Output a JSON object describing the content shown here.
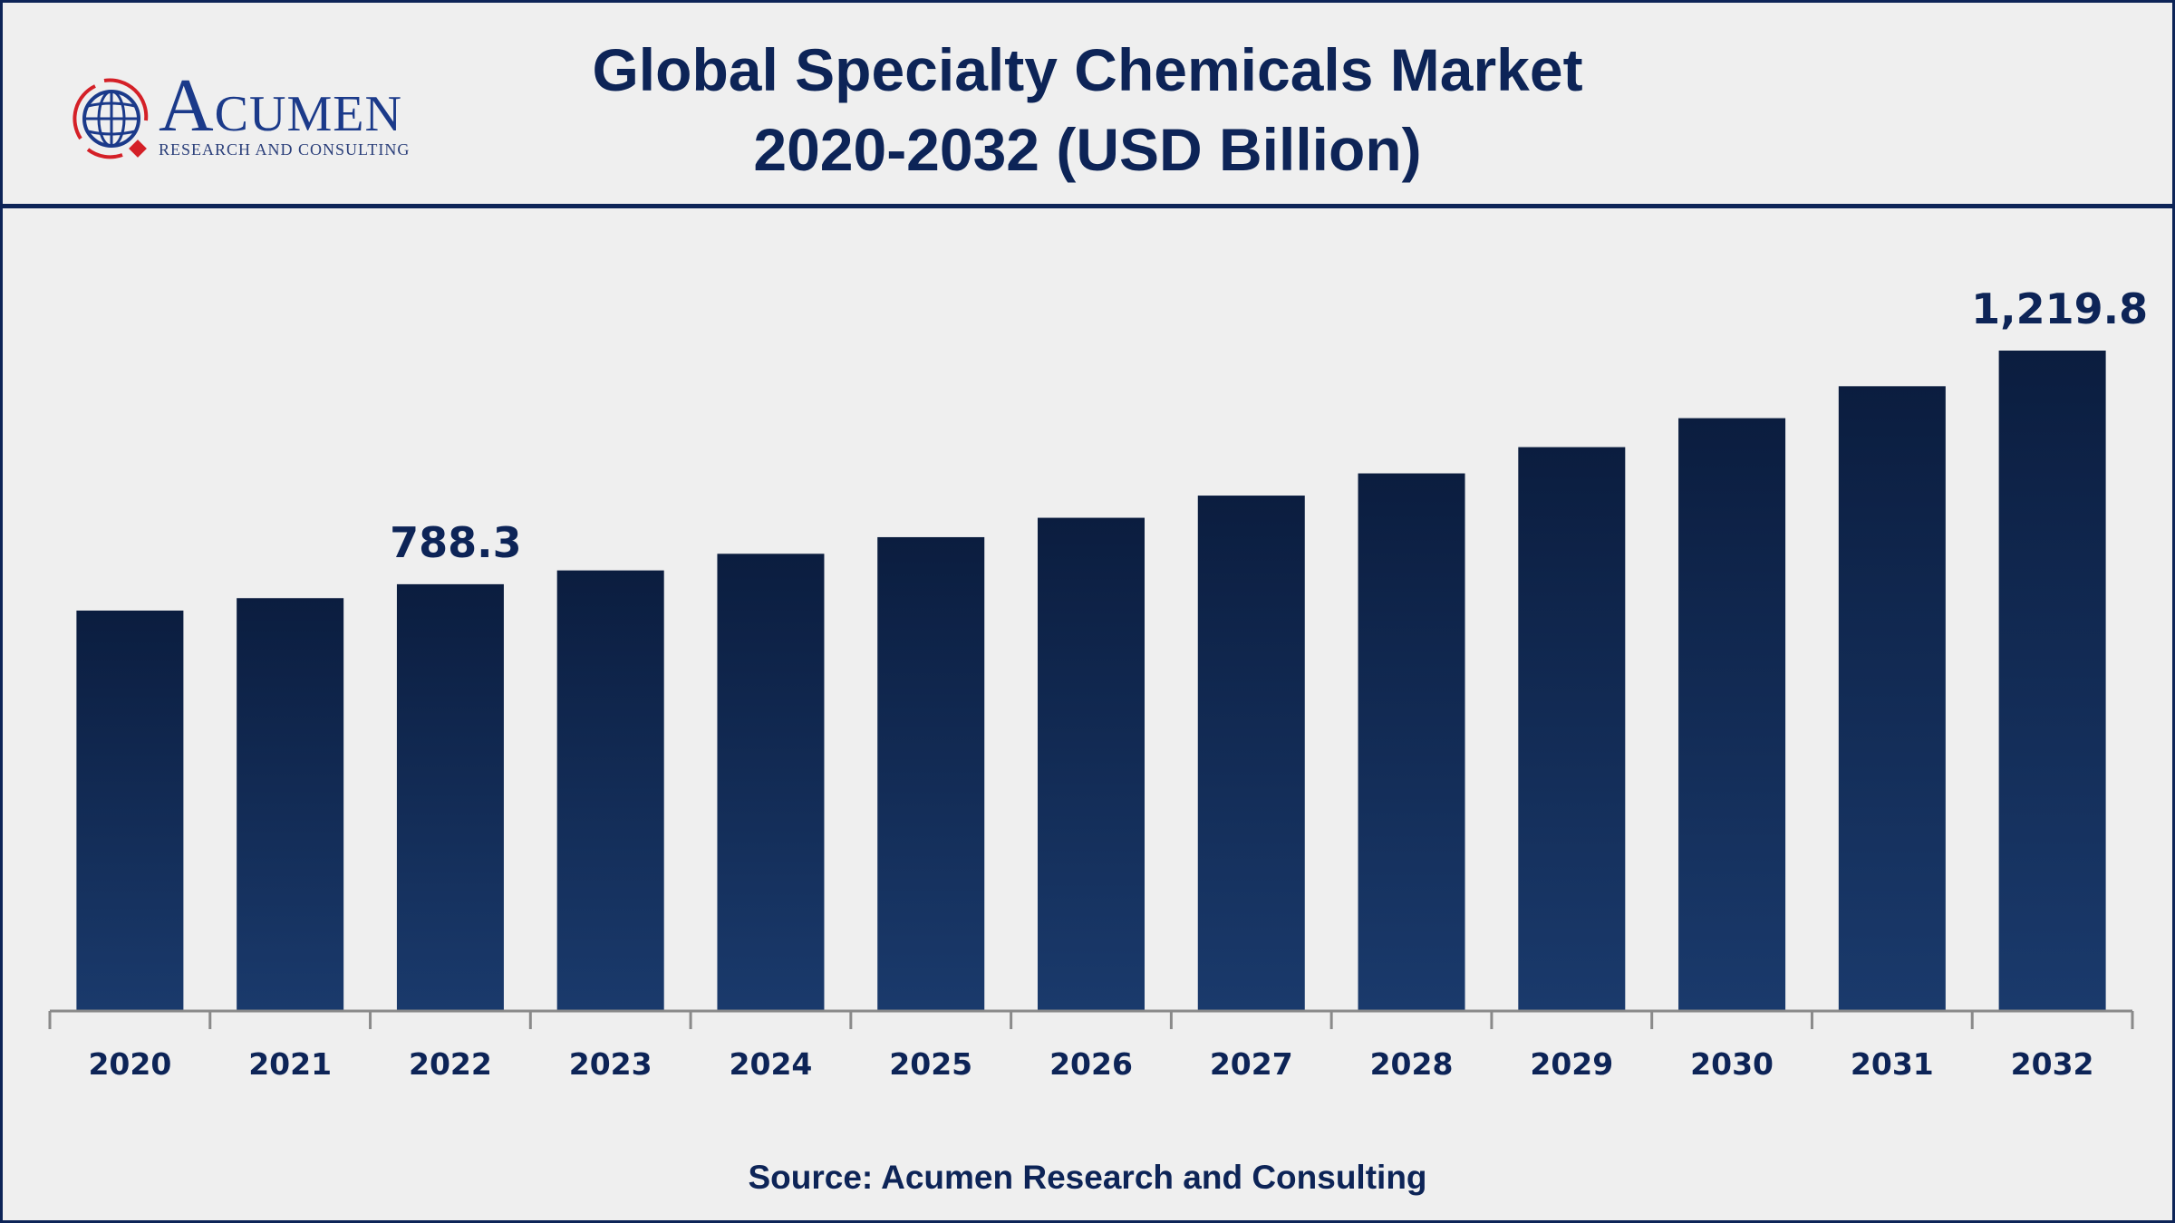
{
  "header": {
    "title_line1": "Global Specialty Chemicals Market",
    "title_line2": "2020-2032 (USD Billion)"
  },
  "logo": {
    "name": "ACUMEN",
    "tagline": "RESEARCH AND CONSULTING"
  },
  "source": "Source: Acumen Research and Consulting",
  "colors": {
    "bar_top": "#0b1d3f",
    "bar_bottom": "#1a3a6c",
    "text": "#0d2457",
    "logo_red": "#d42027"
  },
  "chart_data": {
    "type": "bar",
    "title": "Global Specialty Chemicals Market 2020-2032 (USD Billion)",
    "categories": [
      "2020",
      "2021",
      "2022",
      "2023",
      "2024",
      "2025",
      "2026",
      "2027",
      "2028",
      "2029",
      "2030",
      "2031",
      "2032"
    ],
    "values": [
      739.6,
      762.6,
      788.3,
      813.8,
      844.5,
      875.2,
      911.0,
      952.0,
      993.0,
      1041.5,
      1095.0,
      1154.0,
      1219.8
    ],
    "data_labels": {
      "2022": "788.3",
      "2032": "1,219.8"
    },
    "ylim": [
      0,
      1219.8
    ],
    "grid": false,
    "legend": "none"
  }
}
